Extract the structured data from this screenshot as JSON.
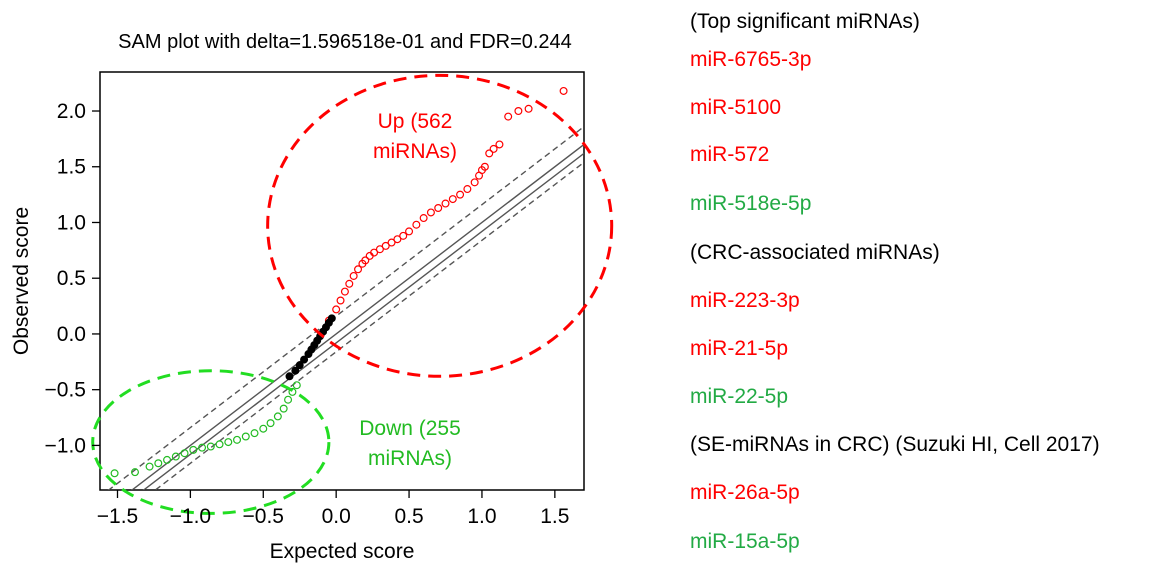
{
  "chart_data": {
    "type": "scatter",
    "title": "SAM plot with delta=1.596518e-01 and FDR=0.244",
    "xlabel": "Expected score",
    "ylabel": "Observed score",
    "xlim": [
      -1.62,
      1.7
    ],
    "ylim": [
      -1.4,
      2.35
    ],
    "xticks": [
      "-1.5",
      "-1.0",
      "-0.5",
      "0.0",
      "0.5",
      "1.0",
      "1.5"
    ],
    "yticks": [
      "-1.0",
      "-0.5",
      "0.0",
      "0.5",
      "1.0",
      "1.5",
      "2.0"
    ],
    "grid": false,
    "reference_lines": [
      {
        "style": "solid",
        "color": "#555555",
        "intercept": 0.0,
        "slope": 1.0
      },
      {
        "style": "solid",
        "color": "#555555",
        "intercept": -0.08,
        "slope": 1.0
      },
      {
        "style": "dashed",
        "color": "#555555",
        "intercept": 0.16,
        "slope": 1.0
      },
      {
        "style": "dashed",
        "color": "#555555",
        "intercept": -0.16,
        "slope": 1.0
      }
    ],
    "series": [
      {
        "group": "up",
        "color": "#ff0000",
        "marker": "circle-open",
        "points": [
          [
            -0.05,
            0.12
          ],
          [
            0.0,
            0.22
          ],
          [
            0.03,
            0.3
          ],
          [
            0.06,
            0.38
          ],
          [
            0.09,
            0.45
          ],
          [
            0.12,
            0.52
          ],
          [
            0.15,
            0.58
          ],
          [
            0.18,
            0.63
          ],
          [
            0.2,
            0.66
          ],
          [
            0.23,
            0.7
          ],
          [
            0.26,
            0.73
          ],
          [
            0.3,
            0.76
          ],
          [
            0.34,
            0.79
          ],
          [
            0.38,
            0.82
          ],
          [
            0.42,
            0.85
          ],
          [
            0.46,
            0.88
          ],
          [
            0.5,
            0.92
          ],
          [
            0.55,
            0.98
          ],
          [
            0.6,
            1.04
          ],
          [
            0.65,
            1.09
          ],
          [
            0.7,
            1.13
          ],
          [
            0.75,
            1.17
          ],
          [
            0.8,
            1.21
          ],
          [
            0.85,
            1.25
          ],
          [
            0.9,
            1.3
          ],
          [
            0.95,
            1.36
          ],
          [
            0.98,
            1.42
          ],
          [
            1.0,
            1.47
          ],
          [
            1.02,
            1.5
          ],
          [
            1.05,
            1.62
          ],
          [
            1.08,
            1.66
          ],
          [
            1.12,
            1.7
          ],
          [
            1.18,
            1.95
          ],
          [
            1.25,
            2.0
          ],
          [
            1.32,
            2.02
          ],
          [
            1.56,
            2.18
          ]
        ]
      },
      {
        "group": "not-significant",
        "color": "#000000",
        "marker": "circle-filled",
        "points": [
          [
            -0.32,
            -0.38
          ],
          [
            -0.28,
            -0.33
          ],
          [
            -0.25,
            -0.28
          ],
          [
            -0.22,
            -0.23
          ],
          [
            -0.19,
            -0.18
          ],
          [
            -0.17,
            -0.14
          ],
          [
            -0.15,
            -0.1
          ],
          [
            -0.13,
            -0.06
          ],
          [
            -0.11,
            -0.02
          ],
          [
            -0.09,
            0.02
          ],
          [
            -0.07,
            0.06
          ],
          [
            -0.05,
            0.1
          ],
          [
            -0.03,
            0.14
          ]
        ]
      },
      {
        "group": "down",
        "color": "#22bb22",
        "marker": "circle-open",
        "points": [
          [
            -1.52,
            -1.25
          ],
          [
            -1.38,
            -1.24
          ],
          [
            -1.28,
            -1.19
          ],
          [
            -1.22,
            -1.16
          ],
          [
            -1.16,
            -1.13
          ],
          [
            -1.1,
            -1.1
          ],
          [
            -1.04,
            -1.07
          ],
          [
            -0.98,
            -1.04
          ],
          [
            -0.92,
            -1.02
          ],
          [
            -0.86,
            -1.01
          ],
          [
            -0.8,
            -0.99
          ],
          [
            -0.74,
            -0.97
          ],
          [
            -0.68,
            -0.95
          ],
          [
            -0.62,
            -0.92
          ],
          [
            -0.56,
            -0.89
          ],
          [
            -0.5,
            -0.85
          ],
          [
            -0.45,
            -0.8
          ],
          [
            -0.4,
            -0.74
          ],
          [
            -0.36,
            -0.67
          ],
          [
            -0.33,
            -0.59
          ],
          [
            -0.3,
            -0.52
          ],
          [
            -0.27,
            -0.46
          ]
        ]
      }
    ],
    "annotations": [
      {
        "text": "Up (562",
        "color": "#ff0000"
      },
      {
        "text": "miRNAs)",
        "color": "#ff0000"
      },
      {
        "text": "Down (255",
        "color": "#22bb22"
      },
      {
        "text": "miRNAs)",
        "color": "#22bb22"
      }
    ],
    "ellipses": [
      {
        "color": "#ff0000",
        "style": "dashed",
        "cx": 0.71,
        "cy": 0.97,
        "rx": 1.18,
        "ry": 1.35
      },
      {
        "color": "#22dd22",
        "style": "dashed",
        "cx": -0.86,
        "cy": -0.97,
        "rx": 0.81,
        "ry": 0.64
      }
    ]
  },
  "legend": {
    "items": [
      {
        "text": "(Top significant miRNAs)",
        "color": "#000000"
      },
      {
        "text": "miR-6765-3p",
        "color": "#ff0000"
      },
      {
        "text": "miR-5100",
        "color": "#ff0000"
      },
      {
        "text": "miR-572",
        "color": "#ff0000"
      },
      {
        "text": "miR-518e-5p",
        "color": "#22aa44"
      },
      {
        "text": "(CRC-associated miRNAs)",
        "color": "#000000"
      },
      {
        "text": "miR-223-3p",
        "color": "#ff0000"
      },
      {
        "text": "miR-21-5p",
        "color": "#ff0000"
      },
      {
        "text": "miR-22-5p",
        "color": "#22aa44"
      },
      {
        "text": "(SE-miRNAs in CRC) (Suzuki HI, Cell 2017)",
        "color": "#000000"
      },
      {
        "text": "miR-26a-5p",
        "color": "#ff0000"
      },
      {
        "text": "miR-15a-5p",
        "color": "#22aa44"
      }
    ]
  }
}
